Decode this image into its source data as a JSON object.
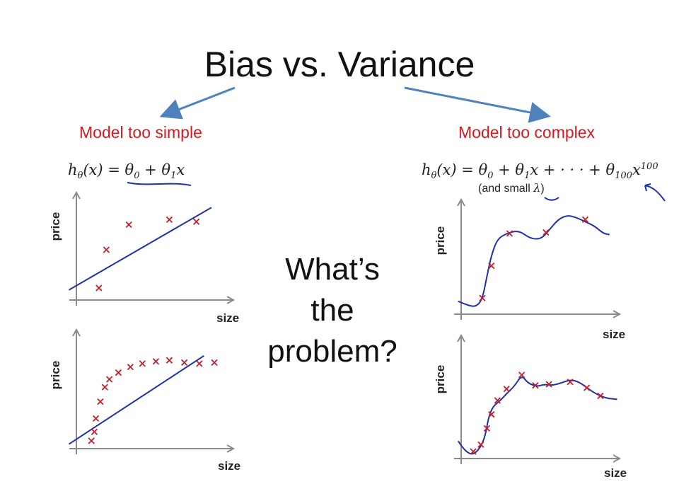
{
  "title": "Bias vs. Variance",
  "left_label": "Model too simple",
  "right_label": "Model too complex",
  "question_lines": [
    "What’s",
    "the",
    "problem?"
  ],
  "left_formula": {
    "lhs": "h",
    "lhs_sub": "θ",
    "body": "(x) = θ",
    "sub0": "0",
    "plus": " + θ",
    "sub1": "1",
    "tail": "x"
  },
  "right_formula": {
    "lhs": "h",
    "lhs_sub": "θ",
    "body": "(x) = θ",
    "sub0": "0",
    "plus": " + θ",
    "sub1": "1",
    "mid": "x + · · · + θ",
    "sub100": "100",
    "tail": "x",
    "sup": "100",
    "note_prefix": "(and small ",
    "note_lambda": "λ",
    "note_suffix": ")"
  },
  "axis_labels": {
    "y": "price",
    "x": "size"
  },
  "colors": {
    "title": "#111111",
    "label_red": "#d9181e",
    "curve_blue": "#1f2fb0",
    "arrow_blue": "#4f81bd",
    "marker_red": "#c0202a",
    "axis_gray": "#8a8a8a"
  },
  "chart_data": [
    {
      "type": "scatter",
      "name": "top-left",
      "points": [
        [
          0.15,
          0.12
        ],
        [
          0.2,
          0.5
        ],
        [
          0.35,
          0.75
        ],
        [
          0.62,
          0.8
        ],
        [
          0.8,
          0.78
        ]
      ],
      "fit": "linear"
    },
    {
      "type": "scatter",
      "name": "bottom-left",
      "points": [
        [
          0.1,
          0.07
        ],
        [
          0.12,
          0.15
        ],
        [
          0.13,
          0.27
        ],
        [
          0.16,
          0.42
        ],
        [
          0.19,
          0.55
        ],
        [
          0.22,
          0.62
        ],
        [
          0.28,
          0.68
        ],
        [
          0.36,
          0.73
        ],
        [
          0.44,
          0.76
        ],
        [
          0.53,
          0.78
        ],
        [
          0.62,
          0.79
        ],
        [
          0.72,
          0.77
        ],
        [
          0.82,
          0.76
        ],
        [
          0.92,
          0.77
        ]
      ],
      "fit": "linear"
    },
    {
      "type": "scatter",
      "name": "top-right",
      "points": [
        [
          0.14,
          0.15
        ],
        [
          0.2,
          0.45
        ],
        [
          0.32,
          0.75
        ],
        [
          0.56,
          0.76
        ],
        [
          0.82,
          0.88
        ]
      ],
      "fit": "high-order polynomial"
    },
    {
      "type": "scatter",
      "name": "bottom-right",
      "points": [
        [
          0.08,
          0.06
        ],
        [
          0.13,
          0.12
        ],
        [
          0.17,
          0.26
        ],
        [
          0.2,
          0.38
        ],
        [
          0.24,
          0.5
        ],
        [
          0.3,
          0.6
        ],
        [
          0.4,
          0.72
        ],
        [
          0.49,
          0.63
        ],
        [
          0.58,
          0.64
        ],
        [
          0.72,
          0.66
        ],
        [
          0.83,
          0.61
        ],
        [
          0.92,
          0.54
        ]
      ],
      "fit": "high-order polynomial"
    }
  ]
}
